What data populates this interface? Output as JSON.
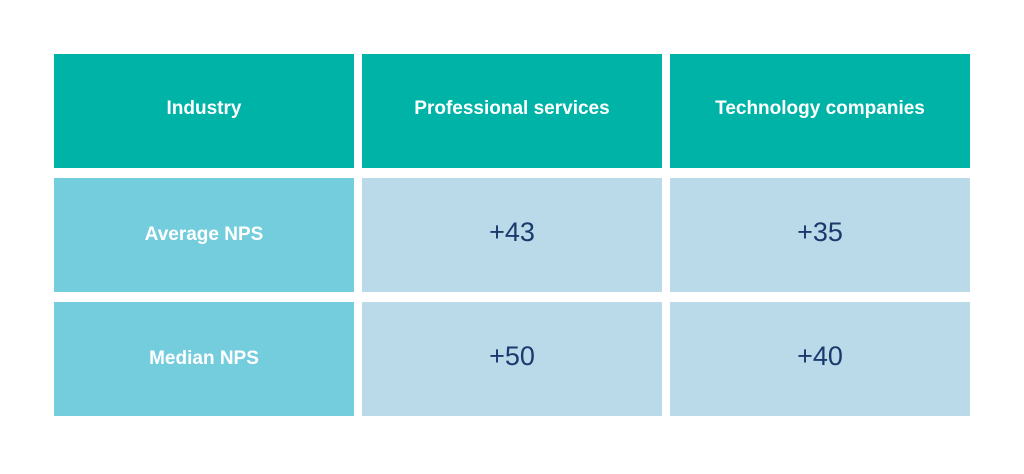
{
  "chart_data": {
    "type": "table",
    "columns": [
      "Industry",
      "Professional services",
      "Technology companies"
    ],
    "rows": [
      {
        "label": "Average NPS",
        "values": [
          "+43",
          "+35"
        ]
      },
      {
        "label": "Median NPS",
        "values": [
          "+50",
          "+40"
        ]
      }
    ],
    "colors": {
      "header_bg": "#00b3a7",
      "row_header_bg": "#74cddc",
      "value_bg": "#bad9e9",
      "value_text": "#1a3a6e",
      "header_text": "#ffffff"
    }
  }
}
